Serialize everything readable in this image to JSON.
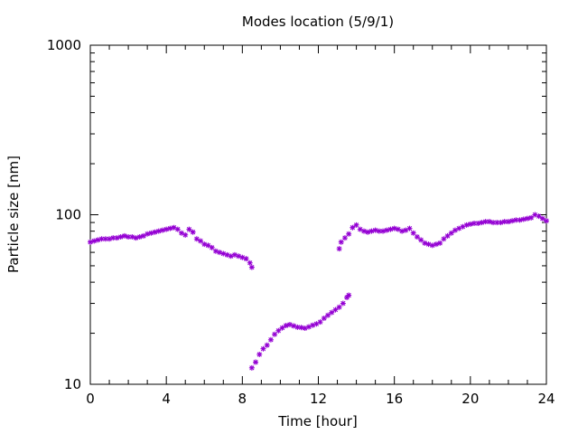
{
  "chart_data": {
    "type": "scatter",
    "title": "Modes location (5/9/1)",
    "xlabel": "Time [hour]",
    "ylabel": "Particle size [nm]",
    "xlim": [
      0,
      24
    ],
    "ylim": [
      10,
      1000
    ],
    "yscale": "log",
    "grid": false,
    "legend": "none",
    "xticks": [
      "0",
      "4",
      "8",
      "12",
      "16",
      "20",
      "24"
    ],
    "yticks": [
      "10",
      "100",
      "1000"
    ],
    "marker_color": "#9400d3",
    "series": [
      {
        "points": [
          [
            0.0,
            69
          ],
          [
            0.2,
            70
          ],
          [
            0.4,
            71
          ],
          [
            0.6,
            72
          ],
          [
            0.8,
            72
          ],
          [
            1.0,
            72
          ],
          [
            1.2,
            73
          ],
          [
            1.4,
            73
          ],
          [
            1.6,
            74
          ],
          [
            1.8,
            75
          ],
          [
            2.0,
            74
          ],
          [
            2.2,
            74
          ],
          [
            2.4,
            73
          ],
          [
            2.6,
            74
          ],
          [
            2.8,
            75
          ],
          [
            3.0,
            77
          ],
          [
            3.2,
            78
          ],
          [
            3.4,
            79
          ],
          [
            3.6,
            80
          ],
          [
            3.8,
            81
          ],
          [
            4.0,
            82
          ],
          [
            4.2,
            83
          ],
          [
            4.4,
            84
          ],
          [
            4.6,
            82
          ],
          [
            4.8,
            78
          ],
          [
            5.0,
            76
          ],
          [
            5.2,
            82
          ],
          [
            5.4,
            79
          ],
          [
            5.6,
            72
          ],
          [
            5.8,
            70
          ],
          [
            6.0,
            67
          ],
          [
            6.2,
            66
          ],
          [
            6.4,
            64
          ],
          [
            6.6,
            61
          ],
          [
            6.8,
            60
          ],
          [
            7.0,
            59
          ],
          [
            7.2,
            58
          ],
          [
            7.4,
            57
          ],
          [
            7.6,
            58
          ],
          [
            7.8,
            57
          ],
          [
            8.0,
            56
          ],
          [
            8.2,
            55
          ],
          [
            8.4,
            52
          ],
          [
            8.5,
            49
          ]
        ]
      },
      {
        "points": [
          [
            8.5,
            12.5
          ],
          [
            8.7,
            13.5
          ],
          [
            8.9,
            15
          ],
          [
            9.1,
            16.2
          ],
          [
            9.3,
            17
          ],
          [
            9.5,
            18.3
          ],
          [
            9.7,
            19.7
          ],
          [
            9.9,
            20.7
          ],
          [
            10.1,
            21.5
          ],
          [
            10.3,
            22.2
          ],
          [
            10.5,
            22.5
          ],
          [
            10.7,
            22.1
          ],
          [
            10.9,
            21.7
          ],
          [
            11.1,
            21.6
          ],
          [
            11.3,
            21.4
          ],
          [
            11.5,
            21.8
          ],
          [
            11.7,
            22.3
          ],
          [
            11.9,
            22.7
          ],
          [
            12.1,
            23.3
          ],
          [
            12.3,
            24.5
          ],
          [
            12.5,
            25.5
          ],
          [
            12.7,
            26.5
          ],
          [
            12.9,
            27.5
          ],
          [
            13.1,
            28.5
          ],
          [
            13.3,
            30
          ],
          [
            13.5,
            32.5
          ],
          [
            13.6,
            33.5
          ]
        ]
      },
      {
        "points": [
          [
            13.1,
            63
          ],
          [
            13.2,
            69
          ],
          [
            13.4,
            73
          ],
          [
            13.6,
            77
          ],
          [
            13.8,
            84
          ],
          [
            14.0,
            87
          ],
          [
            14.2,
            82
          ],
          [
            14.4,
            80
          ],
          [
            14.6,
            79
          ],
          [
            14.8,
            80
          ],
          [
            15.0,
            81
          ],
          [
            15.2,
            80
          ],
          [
            15.4,
            80
          ],
          [
            15.6,
            81
          ],
          [
            15.8,
            82
          ],
          [
            16.0,
            83
          ],
          [
            16.2,
            82
          ],
          [
            16.4,
            80
          ],
          [
            16.6,
            81
          ],
          [
            16.8,
            83
          ],
          [
            17.0,
            78
          ],
          [
            17.2,
            74
          ],
          [
            17.4,
            71
          ],
          [
            17.6,
            68
          ],
          [
            17.8,
            67
          ],
          [
            18.0,
            66
          ],
          [
            18.2,
            67
          ],
          [
            18.4,
            68
          ],
          [
            18.6,
            72
          ],
          [
            18.8,
            75
          ],
          [
            19.0,
            78
          ],
          [
            19.2,
            81
          ],
          [
            19.4,
            83
          ],
          [
            19.6,
            85
          ],
          [
            19.8,
            87
          ],
          [
            20.0,
            88
          ],
          [
            20.2,
            89
          ],
          [
            20.4,
            89
          ],
          [
            20.6,
            90
          ],
          [
            20.8,
            91
          ],
          [
            21.0,
            91
          ],
          [
            21.2,
            90
          ],
          [
            21.4,
            90
          ],
          [
            21.6,
            90
          ],
          [
            21.8,
            91
          ],
          [
            22.0,
            91
          ],
          [
            22.2,
            92
          ],
          [
            22.4,
            93
          ],
          [
            22.6,
            93
          ],
          [
            22.8,
            94
          ],
          [
            23.0,
            95
          ],
          [
            23.2,
            96
          ],
          [
            23.4,
            100
          ],
          [
            23.6,
            98
          ],
          [
            23.8,
            95
          ],
          [
            24.0,
            92
          ]
        ]
      }
    ]
  }
}
